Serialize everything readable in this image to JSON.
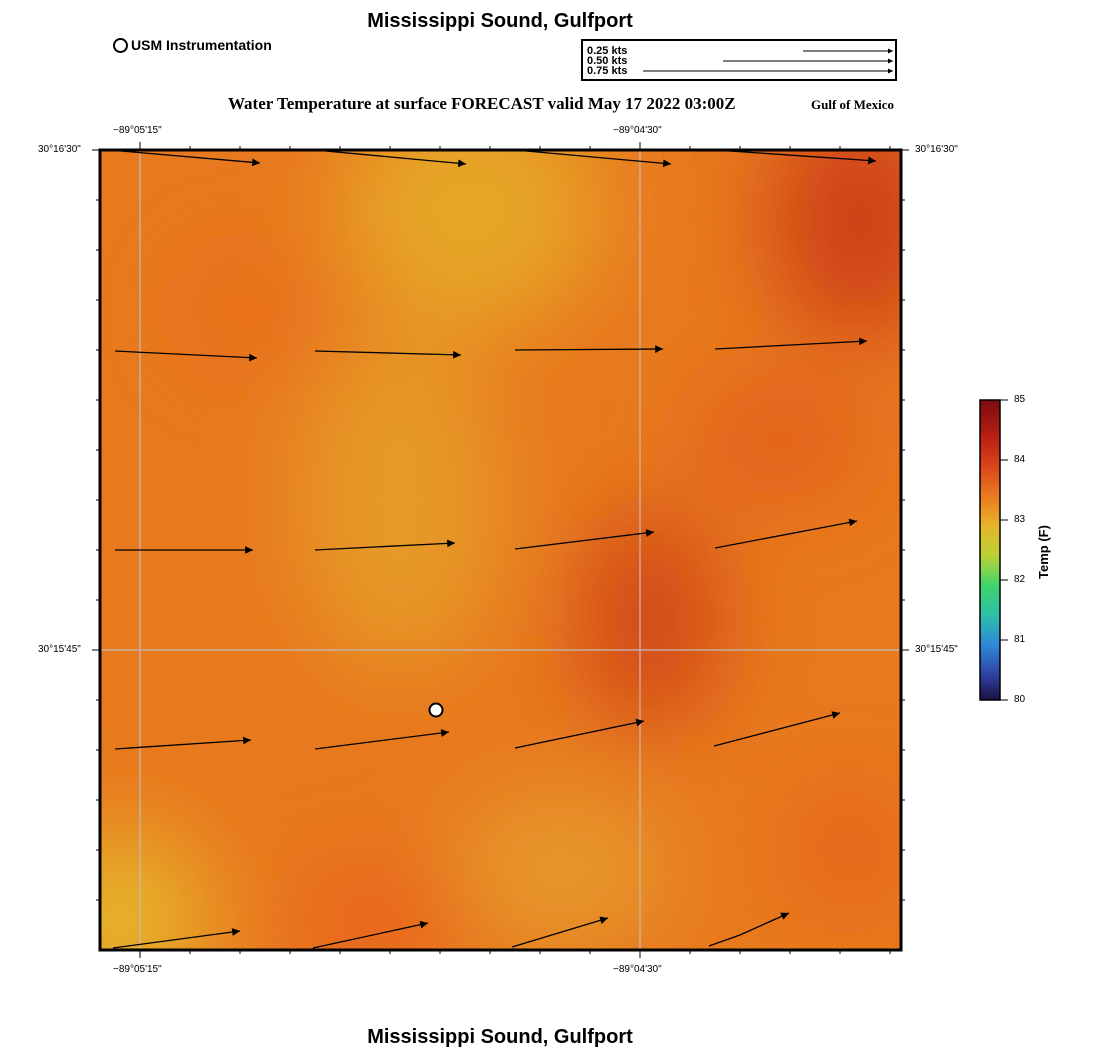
{
  "title": "Mississippi Sound, Gulfport",
  "footer_title": "Mississippi Sound, Gulfport",
  "subtitle": "Water Temperature at surface FORECAST valid May 17 2022 03:00Z",
  "region": "Gulf of Mexico",
  "legend": {
    "station_label": "USM Instrumentation"
  },
  "vector_scale": {
    "labels": [
      "0.25 kts",
      "0.50 kts",
      "0.75 kts"
    ]
  },
  "axes": {
    "longitude_ticks": [
      "−89°05'15\"",
      "−89°04'30\""
    ],
    "latitude_ticks": [
      "30°16'30\"",
      "30°15'45\""
    ]
  },
  "colorbar": {
    "title": "Temp (F)",
    "ticks": [
      "85",
      "84",
      "83",
      "82",
      "81",
      "80"
    ],
    "range": [
      80,
      85
    ],
    "colors": [
      "#7a0c0c",
      "#c8301a",
      "#e86a1c",
      "#e6c22a",
      "#8ed43a",
      "#2ccf8a",
      "#2f8fd8",
      "#2b3a9a",
      "#1a1040"
    ]
  },
  "station": {
    "name": "USM Instrumentation"
  }
}
